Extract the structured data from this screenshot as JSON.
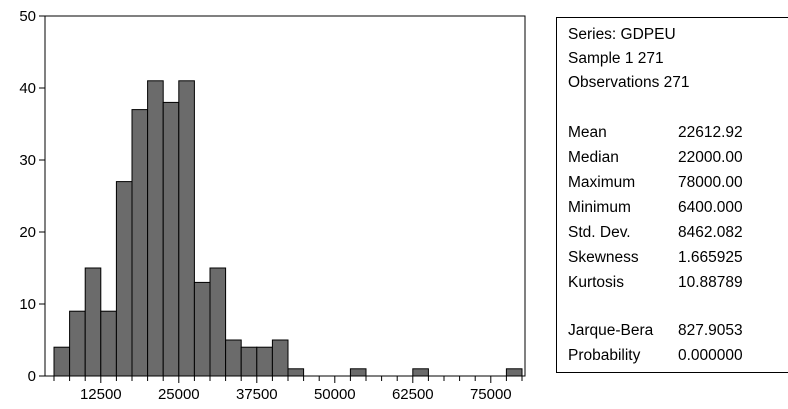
{
  "chart_data": {
    "type": "bar",
    "title": "",
    "xlabel": "",
    "ylabel": "",
    "ylim": [
      0,
      50
    ],
    "xlim": [
      5000,
      80000
    ],
    "bin_width": 2500,
    "y_ticks": [
      0,
      10,
      20,
      30,
      40,
      50
    ],
    "x_ticks": [
      12500,
      25000,
      37500,
      50000,
      62500,
      75000
    ],
    "bins": [
      {
        "from": 5000,
        "to": 7500,
        "count": 4
      },
      {
        "from": 7500,
        "to": 10000,
        "count": 9
      },
      {
        "from": 10000,
        "to": 12500,
        "count": 15
      },
      {
        "from": 12500,
        "to": 15000,
        "count": 9
      },
      {
        "from": 15000,
        "to": 17500,
        "count": 27
      },
      {
        "from": 17500,
        "to": 20000,
        "count": 37
      },
      {
        "from": 20000,
        "to": 22500,
        "count": 41
      },
      {
        "from": 22500,
        "to": 25000,
        "count": 38
      },
      {
        "from": 25000,
        "to": 27500,
        "count": 41
      },
      {
        "from": 27500,
        "to": 30000,
        "count": 13
      },
      {
        "from": 30000,
        "to": 32500,
        "count": 15
      },
      {
        "from": 32500,
        "to": 35000,
        "count": 5
      },
      {
        "from": 35000,
        "to": 37500,
        "count": 4
      },
      {
        "from": 37500,
        "to": 40000,
        "count": 4
      },
      {
        "from": 40000,
        "to": 42500,
        "count": 5
      },
      {
        "from": 42500,
        "to": 45000,
        "count": 1
      },
      {
        "from": 52500,
        "to": 55000,
        "count": 1
      },
      {
        "from": 62500,
        "to": 65000,
        "count": 1
      },
      {
        "from": 77500,
        "to": 80000,
        "count": 1
      }
    ],
    "bar_color": "#6b6b6b",
    "grid": false,
    "legend": "none"
  },
  "stats": {
    "series": "Series: GDPEU",
    "sample": "Sample 1 271",
    "observations": "Observations 271",
    "rows": [
      {
        "label": "Mean",
        "value": "22612.92"
      },
      {
        "label": "Median",
        "value": "22000.00"
      },
      {
        "label": "Maximum",
        "value": "78000.00"
      },
      {
        "label": "Minimum",
        "value": "6400.000"
      },
      {
        "label": "Std. Dev.",
        "value": "8462.082"
      },
      {
        "label": "Skewness",
        "value": "1.665925"
      },
      {
        "label": "Kurtosis",
        "value": "10.88789"
      }
    ],
    "test_rows": [
      {
        "label": "Jarque-Bera",
        "value": "827.9053"
      },
      {
        "label": "Probability",
        "value": "0.000000"
      }
    ]
  }
}
